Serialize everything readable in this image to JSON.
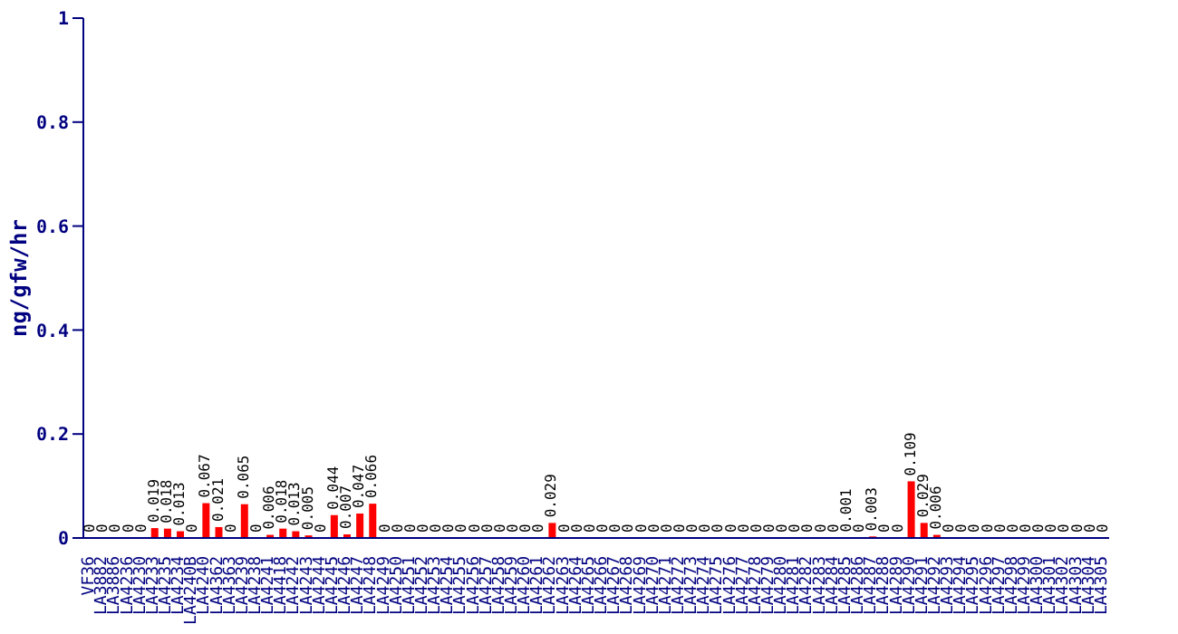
{
  "chart_data": {
    "type": "bar",
    "ylabel": "ng/gfw/hr",
    "categories": [
      "VF36",
      "LA3882",
      "LA3886",
      "LA4236",
      "LA4230",
      "LA4233",
      "LA4235",
      "LA4234",
      "LA4240B",
      "LA4240",
      "LA4362",
      "LA4363",
      "LA4239",
      "LA4238",
      "LA4241",
      "LA4418",
      "LA4242",
      "LA4243",
      "LA4244",
      "LA4245",
      "LA4246",
      "LA4247",
      "LA4248",
      "LA4249",
      "LA4250",
      "LA4251",
      "LA4252",
      "LA4253",
      "LA4254",
      "LA4255",
      "LA4256",
      "LA4257",
      "LA4258",
      "LA4259",
      "LA4260",
      "LA4261",
      "LA4262",
      "LA4263",
      "LA4264",
      "LA4265",
      "LA4266",
      "LA4267",
      "LA4268",
      "LA4269",
      "LA4270",
      "LA4271",
      "LA4272",
      "LA4273",
      "LA4274",
      "LA4275",
      "LA4276",
      "LA4277",
      "LA4278",
      "LA4279",
      "LA4280",
      "LA4281",
      "LA4282",
      "LA4283",
      "LA4284",
      "LA4285",
      "LA4286",
      "LA4287",
      "LA4288",
      "LA4289",
      "LA4290",
      "LA4291",
      "LA4292",
      "LA4293",
      "LA4294",
      "LA4295",
      "LA4296",
      "LA4297",
      "LA4298",
      "LA4299",
      "LA4300",
      "LA4301",
      "LA4302",
      "LA4303",
      "LA4304",
      "LA4305"
    ],
    "values": [
      0,
      0,
      0,
      0,
      0,
      0.019,
      0.018,
      0.013,
      0,
      0.067,
      0.021,
      0,
      0.065,
      0,
      0.006,
      0.018,
      0.013,
      0.005,
      0,
      0.044,
      0.007,
      0.047,
      0.066,
      0,
      0,
      0,
      0,
      0,
      0,
      0,
      0,
      0,
      0,
      0,
      0,
      0,
      0.029,
      0,
      0,
      0,
      0,
      0,
      0,
      0,
      0,
      0,
      0,
      0,
      0,
      0,
      0,
      0,
      0,
      0,
      0,
      0,
      0,
      0,
      0,
      0.001,
      0,
      0.003,
      0,
      0,
      0.109,
      0.029,
      0.006,
      0,
      0,
      0,
      0,
      0,
      0,
      0,
      0,
      0,
      0,
      0,
      0,
      0
    ],
    "color": "#ff0000",
    "ylim": [
      0,
      1
    ],
    "yticks": [
      0,
      0.2,
      0.4,
      0.6,
      0.8,
      1
    ],
    "data_labels": true
  }
}
